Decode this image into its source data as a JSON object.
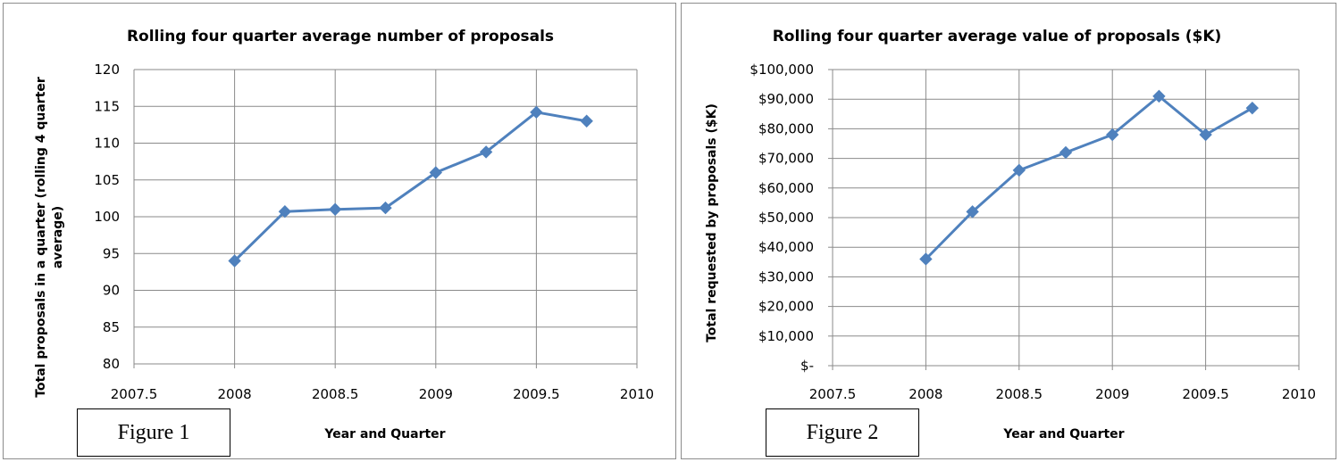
{
  "figures": [
    {
      "caption": "Figure 1"
    },
    {
      "caption": "Figure 2"
    }
  ],
  "chart_data": [
    {
      "type": "line",
      "title": "Rolling four quarter average number of proposals",
      "xlabel": "Year and Quarter",
      "ylabel_lines": [
        "Total proposals in a quarter (rolling 4 quarter",
        "average)"
      ],
      "xlim": [
        2007.5,
        2010
      ],
      "ylim": [
        80,
        120
      ],
      "x_ticks": [
        "2007.5",
        "2008",
        "2008.5",
        "2009",
        "2009.5",
        "2010"
      ],
      "y_ticks": [
        "80",
        "85",
        "90",
        "95",
        "100",
        "105",
        "110",
        "115",
        "120"
      ],
      "grid": true,
      "series": [
        {
          "x": [
            2008,
            2008.25,
            2008.5,
            2008.75,
            2009,
            2009.25,
            2009.5,
            2009.75
          ],
          "values": [
            94,
            100.7,
            101,
            101.2,
            106,
            108.8,
            114.2,
            113
          ]
        }
      ],
      "color": "#4f81bd"
    },
    {
      "type": "line",
      "title": "Rolling four quarter average value of proposals ($K)",
      "xlabel": "Year and Quarter",
      "ylabel_lines": [
        "Total requested by proposals ($K)"
      ],
      "xlim": [
        2007.5,
        2010
      ],
      "ylim": [
        0,
        100000
      ],
      "x_ticks": [
        "2007.5",
        "2008",
        "2008.5",
        "2009",
        "2009.5",
        "2010"
      ],
      "y_ticks": [
        "$-",
        "$10,000",
        "$20,000",
        "$30,000",
        "$40,000",
        "$50,000",
        "$60,000",
        "$70,000",
        "$80,000",
        "$90,000",
        "$100,000"
      ],
      "grid": true,
      "series": [
        {
          "x": [
            2008,
            2008.25,
            2008.5,
            2008.75,
            2009,
            2009.25,
            2009.5,
            2009.75
          ],
          "values": [
            36000,
            52000,
            66000,
            72000,
            78000,
            91000,
            78000,
            87000
          ]
        }
      ],
      "color": "#4f81bd"
    }
  ]
}
